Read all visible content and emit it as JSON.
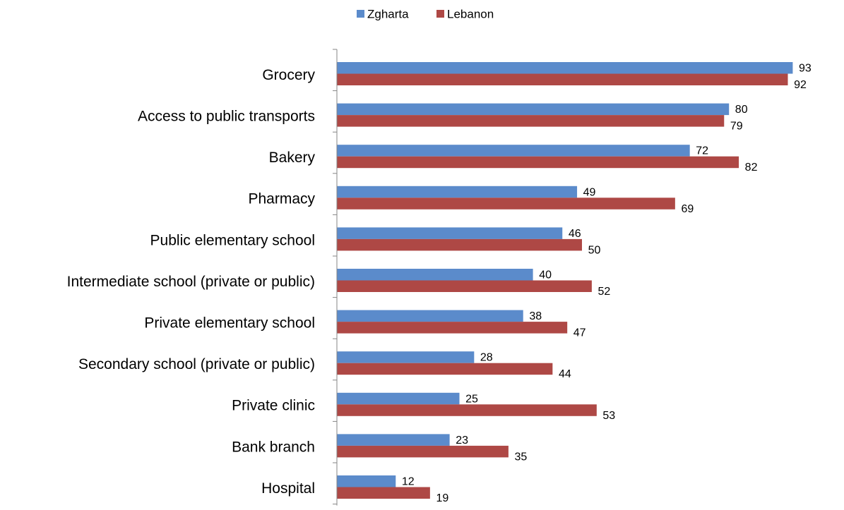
{
  "chart_data": {
    "type": "bar",
    "orientation": "horizontal",
    "title": "",
    "xlabel": "",
    "ylabel": "",
    "xlim": [
      0,
      100
    ],
    "grid": false,
    "legend": "top-center",
    "categories": [
      "Grocery",
      "Access to public transports",
      "Bakery",
      "Pharmacy",
      "Public elementary school",
      "Intermediate school (private or public)",
      "Private elementary school",
      "Secondary school (private or public)",
      "Private clinic",
      "Bank branch",
      "Hospital"
    ],
    "series": [
      {
        "name": "Zgharta",
        "color": "#5B8BCB",
        "values": [
          93,
          80,
          72,
          49,
          46,
          40,
          38,
          28,
          25,
          23,
          12
        ]
      },
      {
        "name": "Lebanon",
        "color": "#AE4845",
        "values": [
          92,
          79,
          82,
          69,
          50,
          52,
          47,
          44,
          53,
          35,
          19
        ]
      }
    ]
  }
}
